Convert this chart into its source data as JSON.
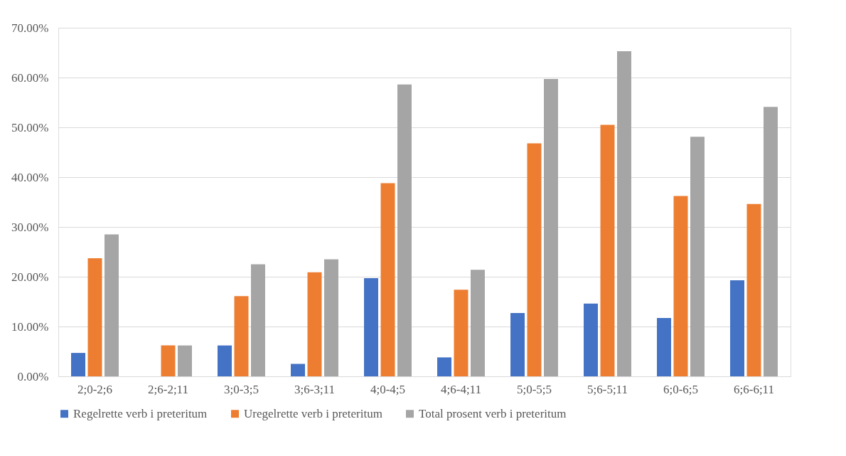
{
  "chart_data": {
    "type": "bar",
    "categories": [
      "2;0-2;6",
      "2;6-2;11",
      "3;0-3;5",
      "3;6-3;11",
      "4;0-4;5",
      "4;6-4;11",
      "5;0-5;5",
      "5;6-5;11",
      "6;0-6;5",
      "6;6-6;11"
    ],
    "series": [
      {
        "name": "Regelrette verb i preteritum",
        "color": "#4472c4",
        "values": [
          4.7,
          0,
          6.2,
          2.5,
          19.7,
          3.8,
          12.7,
          14.6,
          11.7,
          19.3
        ]
      },
      {
        "name": "Uregelrette verb i preteritum",
        "color": "#ed7d31",
        "values": [
          23.7,
          6.2,
          16.1,
          20.9,
          38.8,
          17.4,
          46.8,
          50.5,
          36.2,
          34.6
        ]
      },
      {
        "name": "Total prosent verb i preteritum",
        "color": "#a5a5a5",
        "values": [
          28.5,
          6.2,
          22.5,
          23.5,
          58.6,
          21.4,
          59.7,
          65.3,
          48.1,
          54.1
        ]
      }
    ],
    "ylim": [
      0,
      70
    ],
    "yticks": [
      {
        "value": 0,
        "label": "0.00%"
      },
      {
        "value": 10,
        "label": "10.00%"
      },
      {
        "value": 20,
        "label": "20.00%"
      },
      {
        "value": 30,
        "label": "30.00%"
      },
      {
        "value": 40,
        "label": "40.00%"
      },
      {
        "value": 50,
        "label": "50.00%"
      },
      {
        "value": 60,
        "label": "60.00%"
      },
      {
        "value": 70,
        "label": "70.00%"
      }
    ],
    "grid": "y",
    "legend": "bottom"
  }
}
